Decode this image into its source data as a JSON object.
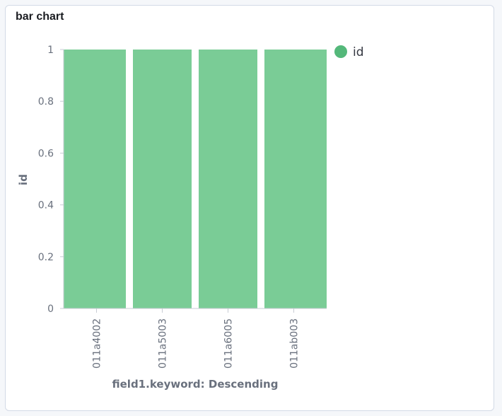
{
  "panel": {
    "title": "bar chart"
  },
  "chart_data": {
    "type": "bar",
    "title": "bar chart",
    "xlabel": "field1.keyword: Descending",
    "ylabel": "id",
    "categories": [
      "011a4002",
      "011a5003",
      "011a6005",
      "011ab003"
    ],
    "series": [
      {
        "name": "id",
        "values": [
          1,
          1,
          1,
          1
        ],
        "color": "#7acc96"
      }
    ],
    "ylim": [
      0,
      1
    ],
    "yticks": [
      "0",
      "0.2",
      "0.4",
      "0.6",
      "0.8",
      "1"
    ],
    "grid": false,
    "legend": {
      "position": "top-right",
      "marker_color": "#54b87a"
    }
  }
}
